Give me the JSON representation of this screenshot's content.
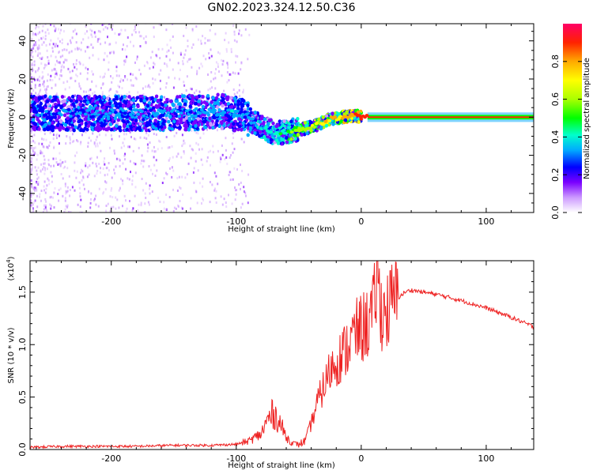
{
  "title": "GN02.2023.324.12.50.C36",
  "chart_data": [
    {
      "type": "heatmap",
      "description_role": "spectrogram",
      "xlabel": "Height of straight line (km)",
      "ylabel": "Frequency (Hz)",
      "xlim": [
        -265,
        138
      ],
      "ylim": [
        -50,
        49
      ],
      "x_ticks": [
        -200,
        -100,
        0,
        100
      ],
      "y_ticks": [
        -40,
        -20,
        0,
        20,
        40
      ],
      "colorbar": {
        "label": "Normalized spectral amplitude",
        "range": [
          0.0,
          1.0
        ],
        "ticks": [
          0.0,
          0.2,
          0.4,
          0.6,
          0.8
        ],
        "colors": [
          "#ffffff",
          "#cc99ff",
          "#7a00ff",
          "#0000ff",
          "#00aaff",
          "#00ffcc",
          "#00ff00",
          "#aaff00",
          "#ffff00",
          "#ffaa00",
          "#ff2200",
          "#ff0066"
        ]
      },
      "ridge": {
        "x": [
          -265,
          -200,
          -150,
          -110,
          -95,
          -80,
          -70,
          -60,
          -55,
          -45,
          -35,
          -25,
          -15,
          -5,
          0,
          20,
          60,
          100,
          138
        ],
        "freq": [
          2,
          2,
          2,
          3,
          1,
          -5,
          -8,
          -8,
          -7,
          -6,
          -4,
          -1,
          0,
          1,
          0,
          0,
          0,
          0,
          0
        ],
        "amplitude": [
          0.25,
          0.28,
          0.3,
          0.32,
          0.3,
          0.35,
          0.4,
          0.45,
          0.55,
          0.6,
          0.65,
          0.7,
          0.75,
          0.8,
          0.85,
          0.9,
          0.9,
          0.9,
          0.9
        ]
      }
    },
    {
      "type": "line",
      "xlabel": "Height of straight line (km)",
      "ylabel": "SNR (10 * v/v)",
      "scale_label": "(x10",
      "scale_exp": "4",
      "scale_suffix": ")",
      "xlim": [
        -265,
        138
      ],
      "ylim": [
        0,
        1.8
      ],
      "x_ticks": [
        -200,
        -100,
        0,
        100
      ],
      "y_ticks": [
        0.0,
        0.5,
        1.0,
        1.5
      ],
      "y_tick_labels": [
        "0.0",
        "0.5",
        "1.0",
        "1.5"
      ],
      "series": [
        {
          "name": "SNR",
          "color": "#ee2222",
          "x": [
            -265,
            -240,
            -210,
            -180,
            -150,
            -120,
            -100,
            -90,
            -80,
            -75,
            -70,
            -65,
            -60,
            -55,
            -50,
            -45,
            -40,
            -35,
            -30,
            -25,
            -20,
            -15,
            -10,
            -5,
            0,
            5,
            10,
            13,
            15,
            20,
            25,
            30,
            35,
            40,
            50,
            60,
            80,
            100,
            120,
            138
          ],
          "y": [
            0.02,
            0.03,
            0.03,
            0.03,
            0.04,
            0.04,
            0.05,
            0.08,
            0.15,
            0.28,
            0.35,
            0.25,
            0.12,
            0.06,
            0.05,
            0.08,
            0.25,
            0.45,
            0.6,
            0.75,
            0.85,
            0.9,
            1.0,
            1.1,
            1.15,
            1.2,
            1.3,
            1.75,
            1.35,
            1.3,
            1.4,
            1.45,
            1.5,
            1.52,
            1.5,
            1.48,
            1.42,
            1.35,
            1.26,
            1.17
          ]
        }
      ]
    }
  ]
}
